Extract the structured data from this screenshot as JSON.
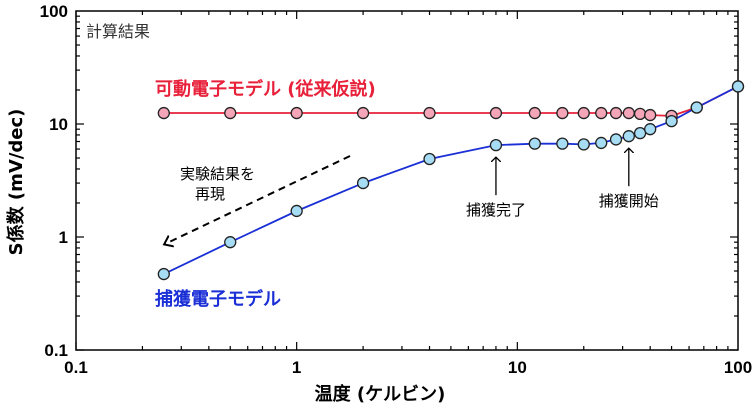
{
  "chart_data": {
    "type": "scatter",
    "xlabel": "温度 (ケルビン)",
    "ylabel": "S係数 (mV/dec)",
    "x_scale": "log",
    "y_scale": "log",
    "xlim": [
      0.1,
      100
    ],
    "ylim": [
      0.1,
      100
    ],
    "x_ticks": [
      0.1,
      1,
      10,
      100
    ],
    "x_tick_labels": [
      "0.1",
      "1",
      "10",
      "100"
    ],
    "y_ticks": [
      0.1,
      1,
      10,
      100
    ],
    "y_tick_labels": [
      "0.1",
      "1",
      "10",
      "100"
    ],
    "grid": false,
    "corner_note": "計算結果",
    "series": [
      {
        "name": "可動電子モデル (従来仮説)",
        "color": "#e8203a",
        "marker_fill": "#f4a6b8",
        "x": [
          0.25,
          0.5,
          1,
          2,
          4,
          8,
          12,
          16,
          20,
          24,
          28,
          32,
          36,
          40,
          50,
          65,
          100
        ],
        "y": [
          12.5,
          12.5,
          12.5,
          12.5,
          12.5,
          12.5,
          12.5,
          12.5,
          12.5,
          12.5,
          12.5,
          12.5,
          12.3,
          12.0,
          11.8,
          14.0,
          21.5
        ]
      },
      {
        "name": "捕獲電子モデル",
        "color": "#1a2fd6",
        "marker_fill": "#a6dcf4",
        "x": [
          0.25,
          0.5,
          1,
          2,
          4,
          8,
          12,
          16,
          20,
          24,
          28,
          32,
          36,
          40,
          50,
          65,
          100
        ],
        "y": [
          0.47,
          0.9,
          1.7,
          3.0,
          4.9,
          6.5,
          6.7,
          6.7,
          6.6,
          6.8,
          7.3,
          7.8,
          8.3,
          9.0,
          10.6,
          14.0,
          21.5
        ]
      }
    ],
    "annotations": [
      {
        "text": "実験結果を",
        "text2": "再現",
        "arrow": "dashed"
      },
      {
        "text": "捕獲完了",
        "x": 8,
        "arrow": "solid"
      },
      {
        "text": "捕獲開始",
        "x": 32,
        "arrow": "solid"
      }
    ]
  }
}
